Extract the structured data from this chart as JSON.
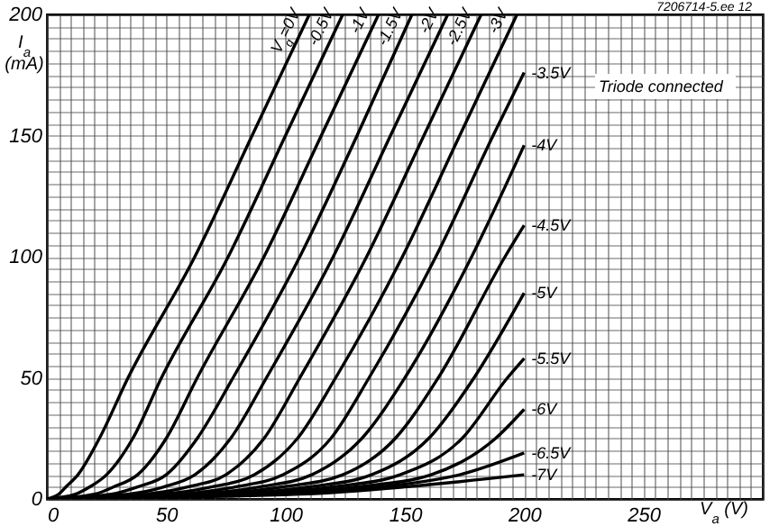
{
  "chart_data": {
    "type": "line",
    "xlabel": "V$_{a}$ (V)",
    "ylabel": "I$_{a}$ (mA)",
    "annotations": [
      "7206714-5.ee 12",
      "Triode connected"
    ],
    "xlim": [
      0,
      300
    ],
    "ylim": [
      0,
      200
    ],
    "xticks": [
      0,
      {
        "value": 5,
        "label": null
      },
      {
        "value": 10,
        "label": null
      },
      {
        "value": 15,
        "label": null
      },
      {
        "value": 20,
        "label": null
      },
      {
        "value": 25,
        "label": null
      },
      {
        "value": 30,
        "label": null
      },
      {
        "value": 35,
        "label": null
      },
      {
        "value": 40,
        "label": null
      },
      {
        "value": 45,
        "label": null
      },
      50,
      {
        "value": 55,
        "label": null
      },
      {
        "value": 60,
        "label": null
      },
      {
        "value": 65,
        "label": null
      },
      {
        "value": 70,
        "label": null
      },
      {
        "value": 75,
        "label": null
      },
      {
        "value": 80,
        "label": null
      },
      {
        "value": 85,
        "label": null
      },
      {
        "value": 90,
        "label": null
      },
      {
        "value": 95,
        "label": null
      },
      100,
      {
        "value": 105,
        "label": null
      },
      {
        "value": 110,
        "label": null
      },
      {
        "value": 115,
        "label": null
      },
      {
        "value": 120,
        "label": null
      },
      {
        "value": 125,
        "label": null
      },
      {
        "value": 130,
        "label": null
      },
      {
        "value": 135,
        "label": null
      },
      {
        "value": 140,
        "label": null
      },
      {
        "value": 145,
        "label": null
      },
      150,
      {
        "value": 155,
        "label": null
      },
      {
        "value": 160,
        "label": null
      },
      {
        "value": 165,
        "label": null
      },
      {
        "value": 170,
        "label": null
      },
      {
        "value": 175,
        "label": null
      },
      {
        "value": 180,
        "label": null
      },
      {
        "value": 185,
        "label": null
      },
      {
        "value": 190,
        "label": null
      },
      {
        "value": 195,
        "label": null
      },
      200,
      {
        "value": 205,
        "label": null
      },
      {
        "value": 210,
        "label": null
      },
      {
        "value": 215,
        "label": null
      },
      {
        "value": 220,
        "label": null
      },
      {
        "value": 225,
        "label": null
      },
      {
        "value": 230,
        "label": null
      },
      {
        "value": 235,
        "label": null
      },
      {
        "value": 240,
        "label": null
      },
      {
        "value": 245,
        "label": null
      },
      250,
      {
        "value": 255,
        "label": null
      },
      {
        "value": 260,
        "label": null
      },
      {
        "value": 265,
        "label": null
      },
      {
        "value": 270,
        "label": null
      },
      {
        "value": 275,
        "label": null
      },
      {
        "value": 280,
        "label": null
      },
      {
        "value": 285,
        "label": null
      },
      {
        "value": 290,
        "label": null
      },
      {
        "value": 295,
        "label": null
      },
      {
        "value": 300,
        "label": null
      }
    ],
    "yticks": [
      0,
      {
        "value": 5,
        "label": null
      },
      {
        "value": 10,
        "label": null
      },
      {
        "value": 15,
        "label": null
      },
      {
        "value": 20,
        "label": null
      },
      {
        "value": 25,
        "label": null
      },
      {
        "value": 30,
        "label": null
      },
      {
        "value": 35,
        "label": null
      },
      {
        "value": 40,
        "label": null
      },
      {
        "value": 45,
        "label": null
      },
      50,
      {
        "value": 55,
        "label": null
      },
      {
        "value": 60,
        "label": null
      },
      {
        "value": 65,
        "label": null
      },
      {
        "value": 70,
        "label": null
      },
      {
        "value": 75,
        "label": null
      },
      {
        "value": 80,
        "label": null
      },
      {
        "value": 85,
        "label": null
      },
      {
        "value": 90,
        "label": null
      },
      {
        "value": 95,
        "label": null
      },
      100,
      {
        "value": 105,
        "label": null
      },
      {
        "value": 110,
        "label": null
      },
      {
        "value": 115,
        "label": null
      },
      {
        "value": 120,
        "label": null
      },
      {
        "value": 125,
        "label": null
      },
      {
        "value": 130,
        "label": null
      },
      {
        "value": 135,
        "label": null
      },
      {
        "value": 140,
        "label": null
      },
      {
        "value": 145,
        "label": null
      },
      150,
      {
        "value": 155,
        "label": null
      },
      {
        "value": 160,
        "label": null
      },
      {
        "value": 165,
        "label": null
      },
      {
        "value": 170,
        "label": null
      },
      {
        "value": 175,
        "label": null
      },
      {
        "value": 180,
        "label": null
      },
      {
        "value": 185,
        "label": null
      },
      {
        "value": 190,
        "label": null
      },
      {
        "value": 195,
        "label": null
      },
      200
    ],
    "grid": true,
    "series": [
      {
        "name": "V$_{g}$=0V",
        "color": "#000000",
        "x": [
          0,
          5,
          8,
          13,
          22,
          34,
          62,
          86,
          110
        ],
        "values": [
          0,
          2,
          5,
          10,
          25,
          50,
          100,
          150,
          200
        ]
      },
      {
        "name": "-0.5V",
        "color": "#000000",
        "x": [
          0,
          12,
          18,
          25,
          36,
          48,
          76,
          100,
          124
        ],
        "values": [
          0,
          2,
          5,
          10,
          25,
          50,
          100,
          150,
          200
        ]
      },
      {
        "name": "-1V",
        "color": "#000000",
        "x": [
          0,
          20,
          28,
          38,
          50,
          63,
          91,
          115,
          139
        ],
        "values": [
          0,
          2,
          5,
          10,
          25,
          50,
          100,
          150,
          200
        ]
      },
      {
        "name": "-1.5V",
        "color": "#000000",
        "x": [
          0,
          27,
          38,
          50,
          63,
          78,
          106,
          130,
          153
        ],
        "values": [
          0,
          2,
          5,
          10,
          25,
          50,
          100,
          150,
          200
        ]
      },
      {
        "name": "-2V",
        "color": "#000000",
        "x": [
          0,
          34,
          49,
          62,
          77,
          92,
          120,
          144,
          168
        ],
        "values": [
          0,
          2,
          5,
          10,
          25,
          50,
          100,
          150,
          200
        ]
      },
      {
        "name": "-2.5V",
        "color": "#000000",
        "x": [
          0,
          41,
          59,
          75,
          91,
          106,
          134,
          158,
          182
        ],
        "values": [
          0,
          2,
          5,
          10,
          25,
          50,
          100,
          150,
          200
        ]
      },
      {
        "name": "-3V",
        "color": "#000000",
        "x": [
          0,
          48,
          69,
          87,
          105,
          121,
          149,
          173,
          197
        ],
        "values": [
          0,
          2,
          5,
          10,
          25,
          50,
          100,
          150,
          200
        ]
      },
      {
        "name": "-3.5V",
        "color": "#000000",
        "x": [
          0,
          56,
          79,
          99,
          119,
          135,
          163,
          187,
          200
        ],
        "values": [
          0,
          2,
          5,
          10,
          25,
          50,
          100,
          150,
          176
        ]
      },
      {
        "name": "-4V",
        "color": "#000000",
        "x": [
          0,
          63,
          89,
          111,
          132,
          150,
          178,
          200
        ],
        "values": [
          0,
          2,
          5,
          10,
          25,
          50,
          100,
          146
        ]
      },
      {
        "name": "-4.5V",
        "color": "#000000",
        "x": [
          0,
          70,
          99,
          124,
          146,
          164,
          192,
          200
        ],
        "values": [
          0,
          2,
          5,
          10,
          25,
          50,
          100,
          113
        ]
      },
      {
        "name": "-5V",
        "color": "#000000",
        "x": [
          0,
          78,
          110,
          136,
          160,
          179,
          200
        ],
        "values": [
          0,
          2,
          5,
          10,
          25,
          50,
          85
        ]
      },
      {
        "name": "-5.5V",
        "color": "#000000",
        "x": [
          0,
          85,
          120,
          148,
          174,
          193,
          200
        ],
        "values": [
          0,
          2,
          5,
          10,
          25,
          50,
          58
        ]
      },
      {
        "name": "-6V",
        "color": "#000000",
        "x": [
          0,
          92,
          130,
          161,
          188,
          200
        ],
        "values": [
          0,
          2,
          5,
          10,
          25,
          37
        ]
      },
      {
        "name": "-6.5V",
        "color": "#000000",
        "x": [
          0,
          99,
          140,
          173,
          200
        ],
        "values": [
          0,
          2,
          5,
          10,
          19
        ]
      },
      {
        "name": "-7V",
        "color": "#000000",
        "x": [
          0,
          106,
          150,
          200
        ],
        "values": [
          0,
          2,
          5,
          10
        ]
      }
    ]
  }
}
